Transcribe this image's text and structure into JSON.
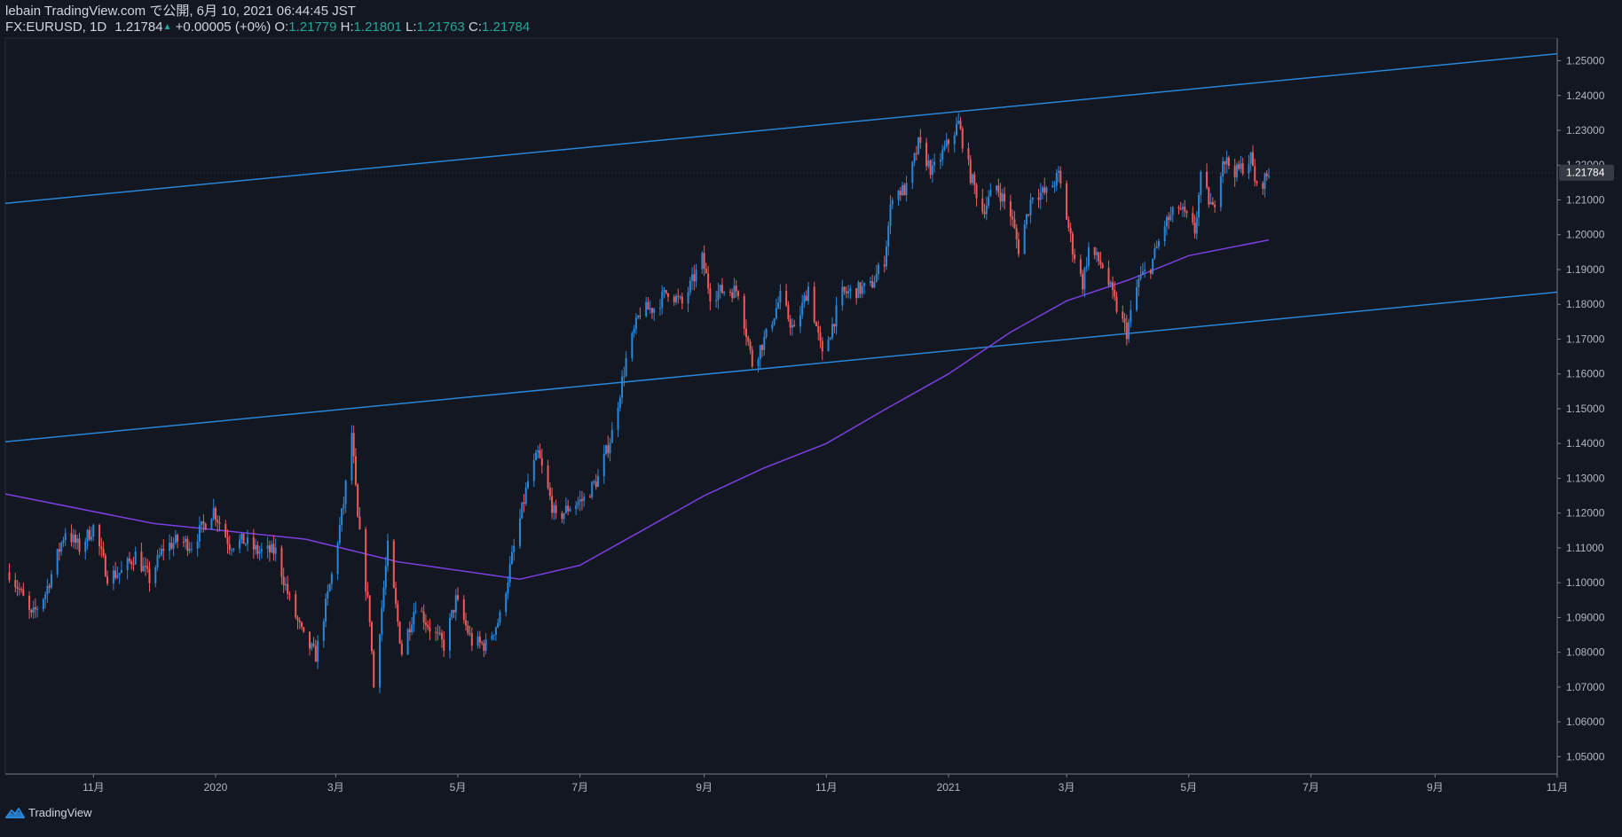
{
  "header": {
    "published": "lebain TradingView.com で公開, 6月 10, 2021 06:44:45 JST",
    "symbol": "FX:EURUSD, 1D",
    "last": "1.21784",
    "change": "+0.00005 (+0%)",
    "o_label": "O:",
    "o_value": "1.21779",
    "h_label": "H:",
    "h_value": "1.21801",
    "l_label": "L:",
    "l_value": "1.21763",
    "c_label": "C:",
    "c_value": "1.21784"
  },
  "brand": {
    "name": "TradingView"
  },
  "colors": {
    "background": "#131722",
    "up": "#2a86d8",
    "down": "#ef5b5b",
    "trendline": "#2a86d8",
    "ma": "#7b3fe0",
    "price_tag_bg": "#363a45",
    "axis_text": "#b2b5be"
  },
  "chart_data": {
    "type": "candlestick",
    "symbol": "FX:EURUSD",
    "timeframe": "1D",
    "x_ticks": [
      "11月",
      "2020",
      "3月",
      "5月",
      "7月",
      "9月",
      "11月",
      "2021",
      "3月",
      "5月",
      "7月",
      "9月",
      "11月"
    ],
    "y_ticks": [
      "1.25000",
      "1.24000",
      "1.23000",
      "1.22000",
      "1.21000",
      "1.20000",
      "1.19000",
      "1.18000",
      "1.17000",
      "1.16000",
      "1.15000",
      "1.14000",
      "1.13000",
      "1.12000",
      "1.11000",
      "1.10000",
      "1.09000",
      "1.08000",
      "1.07000",
      "1.06000",
      "1.05000"
    ],
    "ylim": [
      1.045,
      1.2565
    ],
    "last_price": "1.21784",
    "close_path": [
      [
        "2019-09-20",
        1.103
      ],
      [
        "2019-09-25",
        1.098
      ],
      [
        "2019-10-01",
        1.09
      ],
      [
        "2019-10-08",
        1.097
      ],
      [
        "2019-10-18",
        1.115
      ],
      [
        "2019-10-25",
        1.11
      ],
      [
        "2019-11-01",
        1.116
      ],
      [
        "2019-11-08",
        1.102
      ],
      [
        "2019-11-15",
        1.103
      ],
      [
        "2019-11-22",
        1.108
      ],
      [
        "2019-11-29",
        1.101
      ],
      [
        "2019-12-06",
        1.11
      ],
      [
        "2019-12-13",
        1.112
      ],
      [
        "2019-12-20",
        1.111
      ],
      [
        "2019-12-31",
        1.121
      ],
      [
        "2020-01-08",
        1.111
      ],
      [
        "2020-01-15",
        1.112
      ],
      [
        "2020-01-22",
        1.109
      ],
      [
        "2020-01-31",
        1.109
      ],
      [
        "2020-02-07",
        1.095
      ],
      [
        "2020-02-14",
        1.084
      ],
      [
        "2020-02-20",
        1.079
      ],
      [
        "2020-02-28",
        1.102
      ],
      [
        "2020-03-05",
        1.123
      ],
      [
        "2020-03-09",
        1.143
      ],
      [
        "2020-03-12",
        1.118
      ],
      [
        "2020-03-18",
        1.09
      ],
      [
        "2020-03-20",
        1.07
      ],
      [
        "2020-03-27",
        1.11
      ],
      [
        "2020-04-03",
        1.08
      ],
      [
        "2020-04-10",
        1.094
      ],
      [
        "2020-04-17",
        1.087
      ],
      [
        "2020-04-24",
        1.082
      ],
      [
        "2020-04-30",
        1.095
      ],
      [
        "2020-05-08",
        1.083
      ],
      [
        "2020-05-15",
        1.082
      ],
      [
        "2020-05-22",
        1.09
      ],
      [
        "2020-05-29",
        1.11
      ],
      [
        "2020-06-05",
        1.129
      ],
      [
        "2020-06-10",
        1.137
      ],
      [
        "2020-06-19",
        1.118
      ],
      [
        "2020-06-26",
        1.122
      ],
      [
        "2020-07-03",
        1.124
      ],
      [
        "2020-07-10",
        1.13
      ],
      [
        "2020-07-17",
        1.143
      ],
      [
        "2020-07-24",
        1.164
      ],
      [
        "2020-07-31",
        1.178
      ],
      [
        "2020-08-07",
        1.179
      ],
      [
        "2020-08-14",
        1.184
      ],
      [
        "2020-08-21",
        1.18
      ],
      [
        "2020-08-31",
        1.193
      ],
      [
        "2020-09-04",
        1.183
      ],
      [
        "2020-09-11",
        1.184
      ],
      [
        "2020-09-18",
        1.184
      ],
      [
        "2020-09-25",
        1.163
      ],
      [
        "2020-10-02",
        1.171
      ],
      [
        "2020-10-09",
        1.182
      ],
      [
        "2020-10-16",
        1.172
      ],
      [
        "2020-10-23",
        1.185
      ],
      [
        "2020-10-30",
        1.165
      ],
      [
        "2020-11-09",
        1.183
      ],
      [
        "2020-11-16",
        1.184
      ],
      [
        "2020-11-23",
        1.185
      ],
      [
        "2020-11-30",
        1.193
      ],
      [
        "2020-12-04",
        1.212
      ],
      [
        "2020-12-11",
        1.213
      ],
      [
        "2020-12-17",
        1.226
      ],
      [
        "2020-12-24",
        1.218
      ],
      [
        "2021-01-06",
        1.232
      ],
      [
        "2021-01-12",
        1.217
      ],
      [
        "2021-01-18",
        1.207
      ],
      [
        "2021-01-25",
        1.214
      ],
      [
        "2021-02-01",
        1.206
      ],
      [
        "2021-02-05",
        1.196
      ],
      [
        "2021-02-12",
        1.212
      ],
      [
        "2021-02-19",
        1.212
      ],
      [
        "2021-02-25",
        1.217
      ],
      [
        "2021-03-04",
        1.196
      ],
      [
        "2021-03-09",
        1.186
      ],
      [
        "2021-03-12",
        1.196
      ],
      [
        "2021-03-19",
        1.191
      ],
      [
        "2021-03-26",
        1.179
      ],
      [
        "2021-03-31",
        1.172
      ],
      [
        "2021-04-06",
        1.187
      ],
      [
        "2021-04-12",
        1.191
      ],
      [
        "2021-04-19",
        1.203
      ],
      [
        "2021-04-26",
        1.208
      ],
      [
        "2021-05-04",
        1.201
      ],
      [
        "2021-05-07",
        1.216
      ],
      [
        "2021-05-13",
        1.207
      ],
      [
        "2021-05-18",
        1.222
      ],
      [
        "2021-05-25",
        1.218
      ],
      [
        "2021-06-01",
        1.222
      ],
      [
        "2021-06-04",
        1.213
      ],
      [
        "2021-06-10",
        1.2178
      ]
    ],
    "moving_average": [
      [
        "2019-09-18",
        1.1255
      ],
      [
        "2019-12-01",
        1.117
      ],
      [
        "2020-02-15",
        1.1125
      ],
      [
        "2020-04-01",
        1.106
      ],
      [
        "2020-06-01",
        1.101
      ],
      [
        "2020-07-01",
        1.105
      ],
      [
        "2020-08-01",
        1.115
      ],
      [
        "2020-09-01",
        1.125
      ],
      [
        "2020-10-01",
        1.133
      ],
      [
        "2020-11-01",
        1.14
      ],
      [
        "2020-12-01",
        1.15
      ],
      [
        "2021-01-01",
        1.16
      ],
      [
        "2021-02-01",
        1.172
      ],
      [
        "2021-03-01",
        1.181
      ],
      [
        "2021-04-01",
        1.187
      ],
      [
        "2021-05-01",
        1.194
      ],
      [
        "2021-06-10",
        1.1985
      ]
    ],
    "trendlines": [
      {
        "from": [
          "2019-09-18",
          1.209
        ],
        "to": [
          "2021-11-01",
          1.252
        ]
      },
      {
        "from": [
          "2019-09-18",
          1.1405
        ],
        "to": [
          "2021-11-01",
          1.1835
        ]
      }
    ]
  }
}
